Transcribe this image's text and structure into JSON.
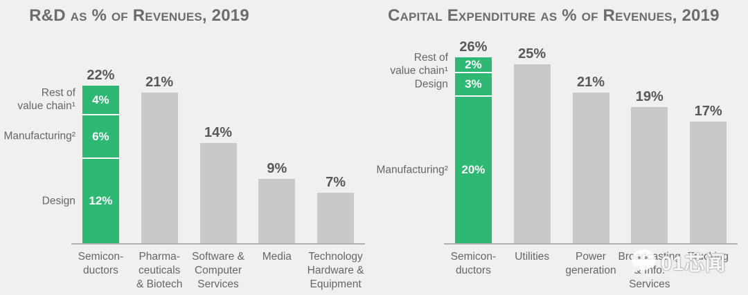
{
  "page": {
    "background": "#f0f0ee"
  },
  "colors": {
    "accent_green": "#2eb873",
    "bar_grey": "#c9c9c8",
    "axis_grey": "#b1b1b0",
    "title_text": "#6b6c6e",
    "label_text": "#63666a",
    "value_text": "#56585a",
    "segment_divider": "#ffffff",
    "inner_label_text": "#ffffff"
  },
  "watermark": {
    "icon": "wechat-logo-icon",
    "text": "01芯闻"
  },
  "chart_data": [
    {
      "type": "bar",
      "title": "R&D as % of Revenues, 2019",
      "categories": [
        "Semicon-\nductors",
        "Pharma-\nceuticals\n& Biotech",
        "Software &\nComputer\nServices",
        "Media",
        "Technology\nHardware &\nEquipment"
      ],
      "values": [
        22,
        21,
        14,
        9,
        7
      ],
      "value_labels": [
        "22%",
        "21%",
        "14%",
        "9%",
        "7%"
      ],
      "xlabel": "",
      "ylabel": "",
      "ylim": [
        0,
        24
      ],
      "grid": false,
      "legend_position": "none",
      "highlight_index": 0,
      "stacked_segments": [
        {
          "name": "Rest of\nvalue chain¹",
          "value": 4,
          "label": "4%"
        },
        {
          "name": "Manufacturing²",
          "value": 6,
          "label": "6%"
        },
        {
          "name": "Design",
          "value": 12,
          "label": "12%"
        }
      ]
    },
    {
      "type": "bar",
      "title": "Capital Expenditure as % of Revenues, 2019",
      "categories": [
        "Semicon-\nductors",
        "Utilities",
        "Power\ngeneration",
        "Broadcasting\n& Info.\nServices",
        "Trucking"
      ],
      "values": [
        26,
        25,
        21,
        19,
        17
      ],
      "value_labels": [
        "26%",
        "25%",
        "21%",
        "19%",
        "17%"
      ],
      "xlabel": "",
      "ylabel": "",
      "ylim": [
        0,
        28
      ],
      "grid": false,
      "legend_position": "none",
      "highlight_index": 0,
      "stacked_segments": [
        {
          "name": "Rest of\nvalue chain¹",
          "value": 2,
          "label": "2%"
        },
        {
          "name": "Design",
          "value": 3,
          "label": "3%"
        },
        {
          "name": "Manufacturing²",
          "value": 20,
          "label": "20%"
        }
      ]
    }
  ]
}
